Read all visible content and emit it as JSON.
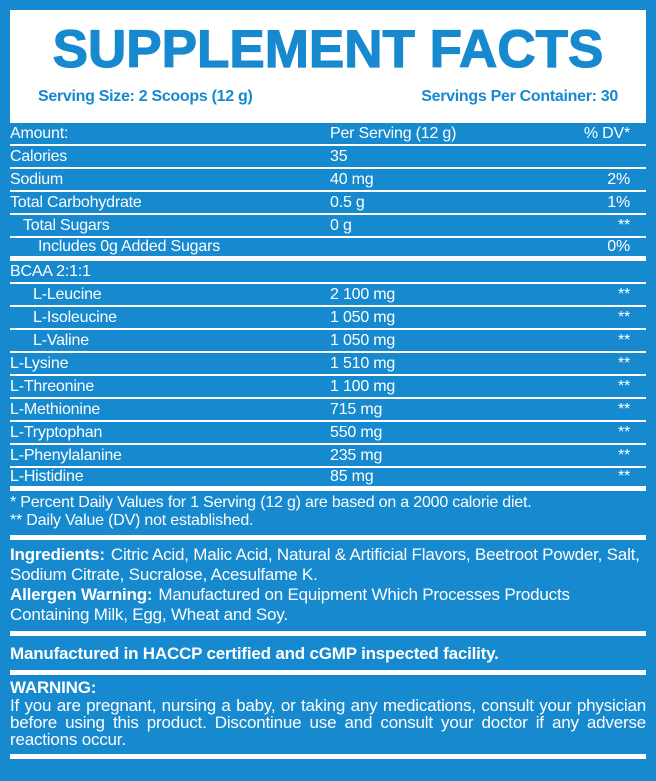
{
  "colors": {
    "blue": "#1689CF",
    "white": "#FFFFFF"
  },
  "header": {
    "title": "SUPPLEMENT FACTS",
    "serving_size": "Serving Size: 2 Scoops (12 g)",
    "servings_per_container": "Servings Per Container: 30"
  },
  "table": {
    "header": {
      "amount": "Amount:",
      "per_serving": "Per Serving (12 g)",
      "dv": "% DV*"
    },
    "rows": [
      {
        "name": "Calories",
        "amount": "35",
        "dv": "",
        "indent": 0,
        "sep": "thin"
      },
      {
        "name": "Sodium",
        "amount": "40 mg",
        "dv": "2%",
        "indent": 0,
        "sep": "thin"
      },
      {
        "name": "Total Carbohydrate",
        "amount": "0.5 g",
        "dv": "1%",
        "indent": 0,
        "sep": "thin"
      },
      {
        "name": "Total Sugars",
        "amount": "0 g",
        "dv": "**",
        "indent": 1,
        "sep": "thin"
      },
      {
        "name": "Includes 0g Added Sugars",
        "amount": "",
        "dv": "0%",
        "indent": 3,
        "sep": "thick"
      },
      {
        "name": "BCAA 2:1:1",
        "amount": "",
        "dv": "",
        "indent": 0,
        "sep": "thin"
      },
      {
        "name": "L-Leucine",
        "amount": "2 100 mg",
        "dv": "**",
        "indent": 2,
        "sep": "thin"
      },
      {
        "name": "L-Isoleucine",
        "amount": "1 050 mg",
        "dv": "**",
        "indent": 2,
        "sep": "thin"
      },
      {
        "name": "L-Valine",
        "amount": "1 050 mg",
        "dv": "**",
        "indent": 2,
        "sep": "thin"
      },
      {
        "name": "L-Lysine",
        "amount": "1 510 mg",
        "dv": "**",
        "indent": 0,
        "sep": "thin"
      },
      {
        "name": "L-Threonine",
        "amount": "1 100 mg",
        "dv": "**",
        "indent": 0,
        "sep": "thin"
      },
      {
        "name": "L-Methionine",
        "amount": "715 mg",
        "dv": "**",
        "indent": 0,
        "sep": "thin"
      },
      {
        "name": "L-Tryptophan",
        "amount": "550 mg",
        "dv": "**",
        "indent": 0,
        "sep": "thin"
      },
      {
        "name": "L-Phenylalanine",
        "amount": "235 mg",
        "dv": "**",
        "indent": 0,
        "sep": "thin"
      },
      {
        "name": "L-Histidine",
        "amount": "85 mg",
        "dv": "**",
        "indent": 0,
        "sep": "thick"
      }
    ]
  },
  "footnotes": [
    "* Percent Daily Values for 1 Serving (12 g) are based on a 2000 calorie diet.",
    "** Daily Value (DV) not established."
  ],
  "ingredients": {
    "label": "Ingredients:",
    "text": "Citric Acid, Malic Acid, Natural & Artificial Flavors, Beetroot Powder, Salt, Sodium Citrate, Sucralose, Acesulfame K."
  },
  "allergen": {
    "label": "Allergen Warning:",
    "text": "Manufactured on Equipment Which Processes Products Containing Milk, Egg, Wheat and Soy."
  },
  "facility": "Manufactured in HACCP certified and cGMP inspected facility.",
  "warning": {
    "label": "WARNING:",
    "text": "If you are pregnant, nursing a baby, or taking any medications, consult your physician before using this product. Discontinue use and consult your doctor if any adverse reactions occur."
  }
}
